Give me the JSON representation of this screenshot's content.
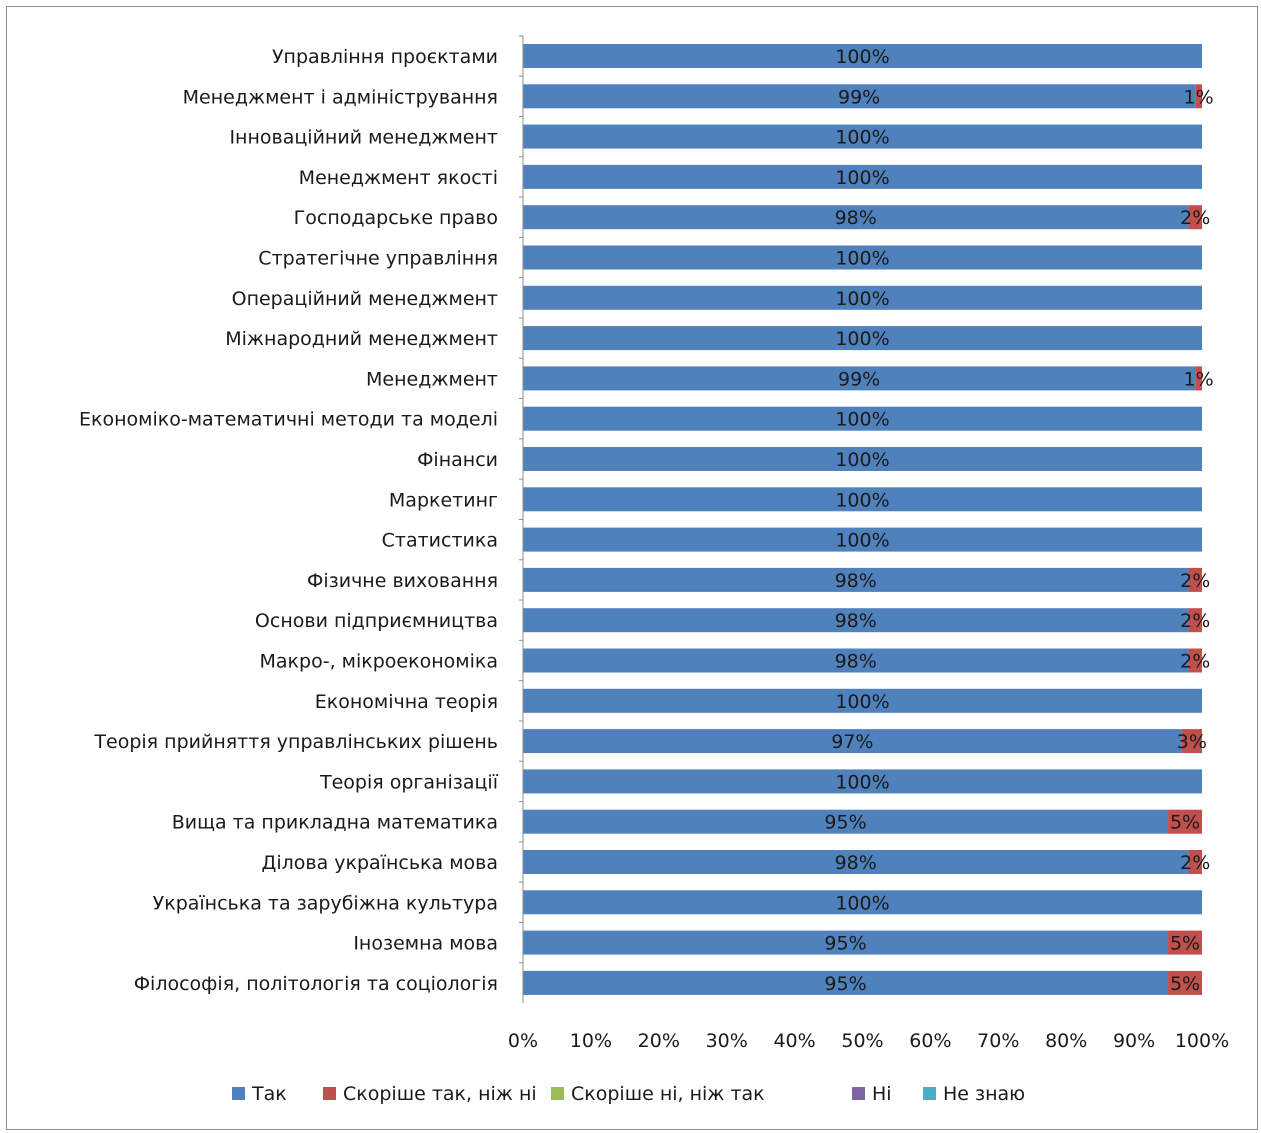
{
  "chart_data": {
    "type": "bar",
    "orientation": "horizontal",
    "stacked": "percent",
    "categories": [
      "Управління проєктами",
      "Менеджмент і адміністрування",
      "Інноваційний менеджмент",
      "Менеджмент якості",
      "Господарське право",
      "Стратегічне управління",
      "Операційний менеджмент",
      "Міжнародний менеджмент",
      "Менеджмент",
      "Економіко-математичні методи та моделі",
      "Фінанси",
      "Маркетинг",
      "Статистика",
      "Фізичне виховання",
      "Основи підприємництва",
      "Макро-, мікроекономіка",
      "Економічна теорія",
      "Теорія прийняття управлінських рішень",
      "Теорія організації",
      "Вища та прикладна математика",
      "Ділова українська мова",
      "Українська та зарубіжна культура",
      "Іноземна мова",
      "Філософія, політологія та соціологія"
    ],
    "series": [
      {
        "name": "Так",
        "color": "#4f81bd",
        "values": [
          100,
          99,
          100,
          100,
          98,
          100,
          100,
          100,
          99,
          100,
          100,
          100,
          100,
          98,
          98,
          98,
          100,
          97,
          100,
          95,
          98,
          100,
          95,
          95
        ]
      },
      {
        "name": "Скоріше так, ніж ні",
        "color": "#c0504d",
        "values": [
          0,
          1,
          0,
          0,
          2,
          0,
          0,
          0,
          1,
          0,
          0,
          0,
          0,
          2,
          2,
          2,
          0,
          3,
          0,
          5,
          2,
          0,
          5,
          5
        ]
      },
      {
        "name": "Скоріше ні, ніж так",
        "color": "#9bbb59",
        "values": [
          0,
          0,
          0,
          0,
          0,
          0,
          0,
          0,
          0,
          0,
          0,
          0,
          0,
          0,
          0,
          0,
          0,
          0,
          0,
          0,
          0,
          0,
          0,
          0
        ]
      },
      {
        "name": "Ні",
        "color": "#8064a2",
        "values": [
          0,
          0,
          0,
          0,
          0,
          0,
          0,
          0,
          0,
          0,
          0,
          0,
          0,
          0,
          0,
          0,
          0,
          0,
          0,
          0,
          0,
          0,
          0,
          0
        ]
      },
      {
        "name": "Не знаю",
        "color": "#4bacc6",
        "values": [
          0,
          0,
          0,
          0,
          0,
          0,
          0,
          0,
          0,
          0,
          0,
          0,
          0,
          0,
          0,
          0,
          0,
          0,
          0,
          0,
          0,
          0,
          0,
          0
        ]
      }
    ],
    "xticks": [
      "0%",
      "10%",
      "20%",
      "30%",
      "40%",
      "50%",
      "60%",
      "70%",
      "80%",
      "90%",
      "100%"
    ],
    "xlim": [
      0,
      100
    ],
    "title": "",
    "xlabel": "",
    "ylabel": "",
    "grid": false,
    "legend_position": "bottom"
  }
}
